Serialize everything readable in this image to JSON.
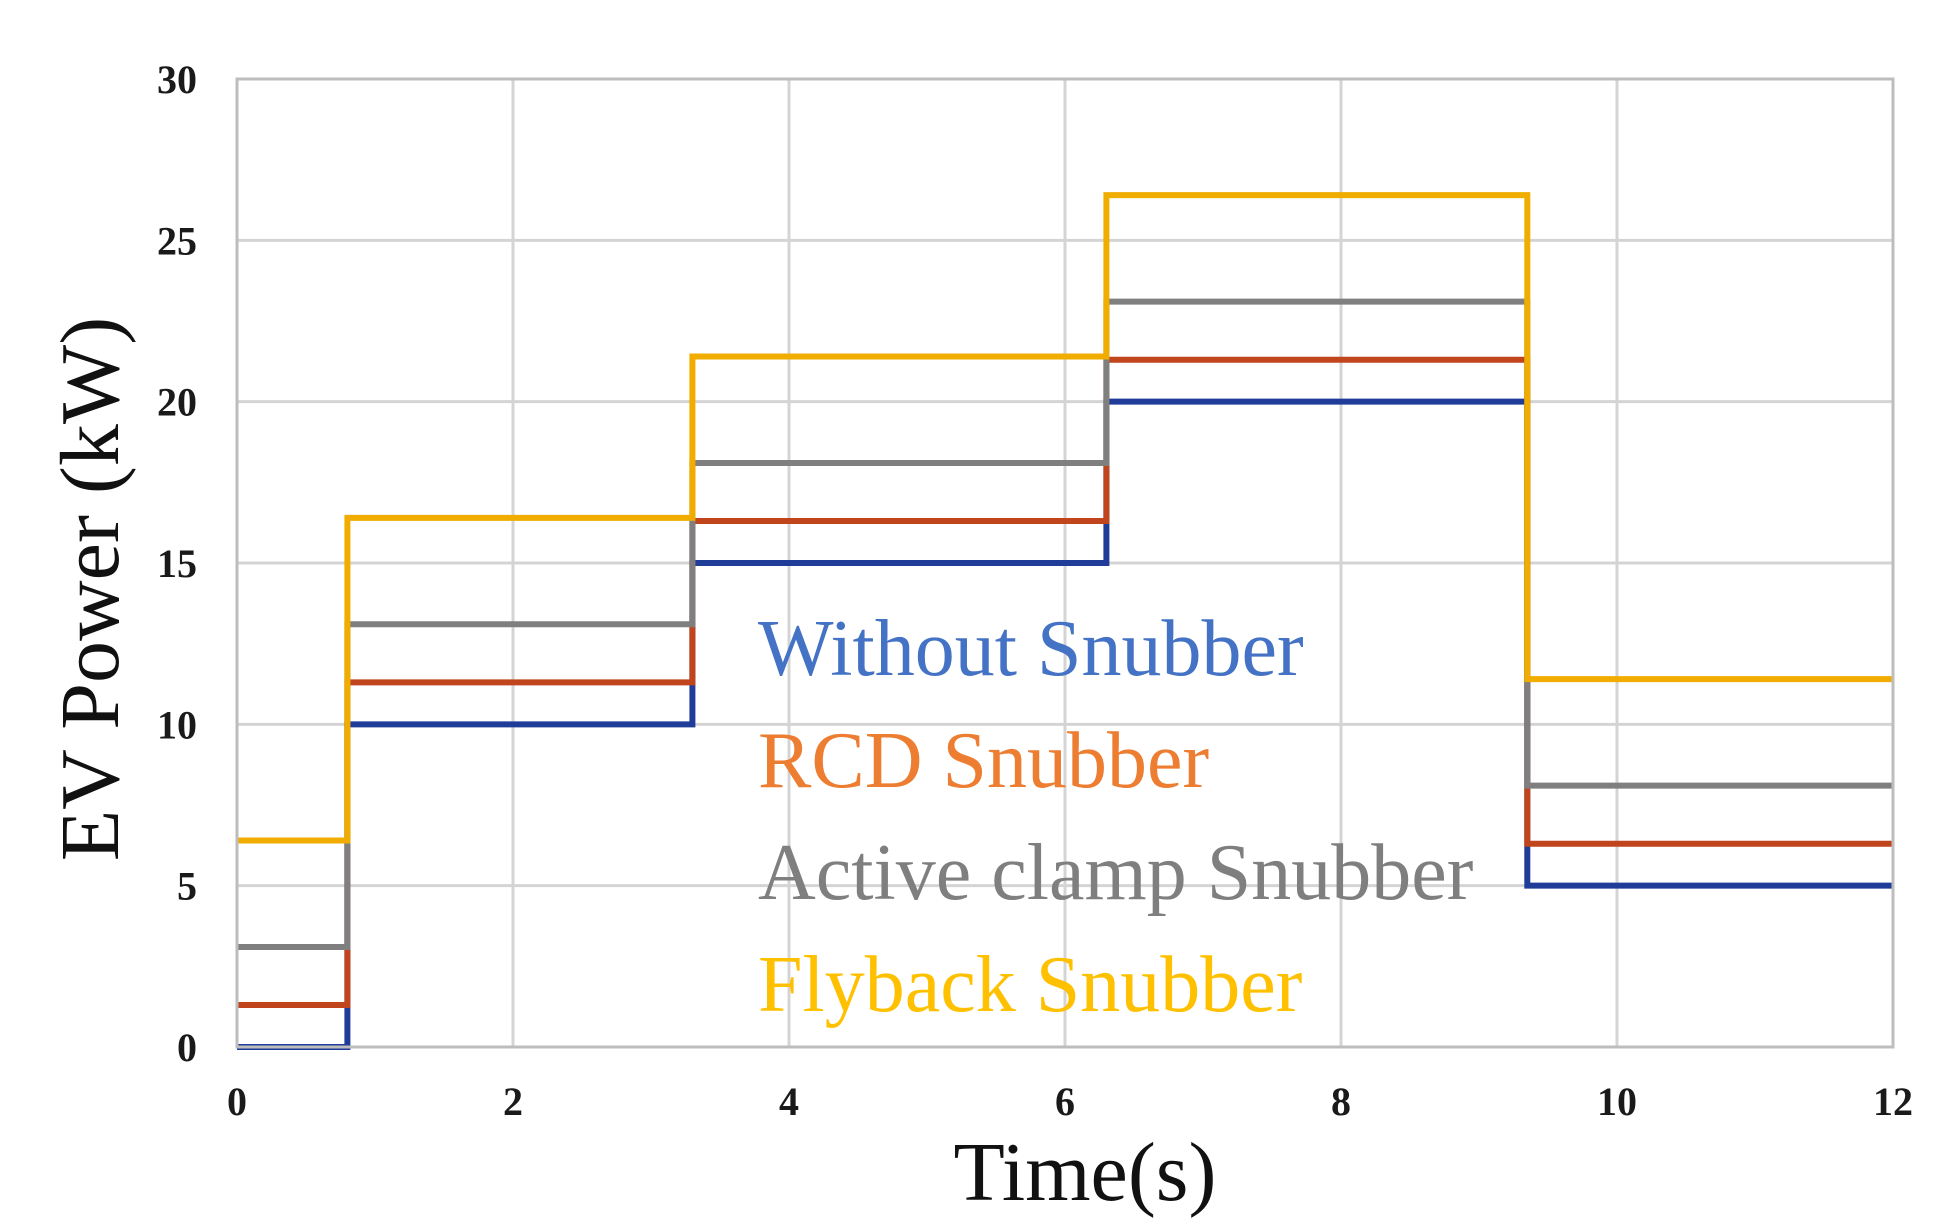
{
  "chart_data": {
    "type": "line",
    "step": true,
    "title": "",
    "xlabel": "Time(s)",
    "ylabel": "EV Power (kW)",
    "xlim": [
      0,
      12
    ],
    "ylim": [
      0,
      30
    ],
    "xticks": [
      0,
      2,
      4,
      6,
      8,
      10,
      12
    ],
    "yticks": [
      0,
      5,
      10,
      15,
      20,
      25,
      30
    ],
    "grid": true,
    "legend_position": "center",
    "x": [
      0,
      0.8,
      3.3,
      6.3,
      9.35,
      12
    ],
    "series": [
      {
        "name": "Without Snubber",
        "color": "#1f3c99",
        "legend_color": "#4472c4",
        "values": [
          0,
          10,
          15,
          20,
          5,
          5
        ]
      },
      {
        "name": "RCD Snubber",
        "color": "#c0441c",
        "legend_color": "#ed7d31",
        "values": [
          1.3,
          11.3,
          16.3,
          21.3,
          6.3,
          6.3
        ]
      },
      {
        "name": "Active clamp Snubber",
        "color": "#7f7f7f",
        "legend_color": "#7f7f7f",
        "values": [
          3.1,
          13.1,
          18.1,
          23.1,
          8.1,
          8.1
        ]
      },
      {
        "name": "Flyback Snubber",
        "color": "#f0ad00",
        "legend_color": "#ffc000",
        "values": [
          6.4,
          16.4,
          21.4,
          26.4,
          11.4,
          11.4
        ]
      }
    ]
  }
}
